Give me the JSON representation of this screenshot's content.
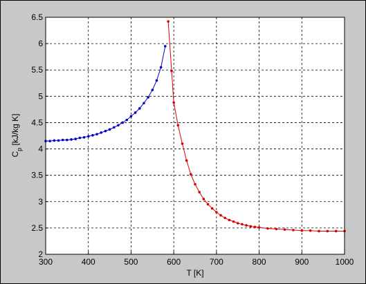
{
  "chart_data": {
    "type": "line",
    "xlabel": "T [K]",
    "ylabel": [
      "C",
      "p",
      " [kJ/kg K]"
    ],
    "xlim": [
      300,
      1000
    ],
    "xticks": [
      300,
      400,
      500,
      600,
      700,
      800,
      900,
      1000
    ],
    "ylim": [
      2,
      6.5
    ],
    "yticks": [
      2,
      2.5,
      3,
      3.5,
      4,
      4.5,
      5,
      5.5,
      6,
      6.5
    ],
    "grid": true,
    "series": [
      {
        "color": "#0000cc",
        "x": [
          300,
          310,
          320,
          330,
          340,
          350,
          360,
          370,
          380,
          390,
          400,
          410,
          420,
          430,
          440,
          450,
          460,
          470,
          480,
          490,
          500,
          510,
          520,
          530,
          540,
          550,
          560,
          570,
          580
        ],
        "values": [
          4.15,
          4.15,
          4.16,
          4.16,
          4.17,
          4.17,
          4.18,
          4.19,
          4.21,
          4.22,
          4.24,
          4.26,
          4.28,
          4.31,
          4.34,
          4.37,
          4.41,
          4.45,
          4.5,
          4.55,
          4.62,
          4.69,
          4.77,
          4.87,
          4.98,
          5.12,
          5.3,
          5.55,
          5.95
        ]
      },
      {
        "color": "#dd0000",
        "x": [
          587,
          595,
          600,
          610,
          620,
          630,
          640,
          650,
          660,
          670,
          680,
          690,
          700,
          710,
          720,
          730,
          740,
          750,
          760,
          770,
          780,
          790,
          800,
          820,
          840,
          860,
          880,
          900,
          920,
          940,
          960,
          980,
          1000
        ],
        "values": [
          6.42,
          5.48,
          4.88,
          4.45,
          4.1,
          3.78,
          3.52,
          3.33,
          3.18,
          3.05,
          2.95,
          2.87,
          2.8,
          2.74,
          2.69,
          2.65,
          2.62,
          2.59,
          2.57,
          2.55,
          2.53,
          2.52,
          2.51,
          2.49,
          2.48,
          2.47,
          2.46,
          2.45,
          2.45,
          2.44,
          2.44,
          2.44,
          2.44
        ]
      }
    ]
  }
}
